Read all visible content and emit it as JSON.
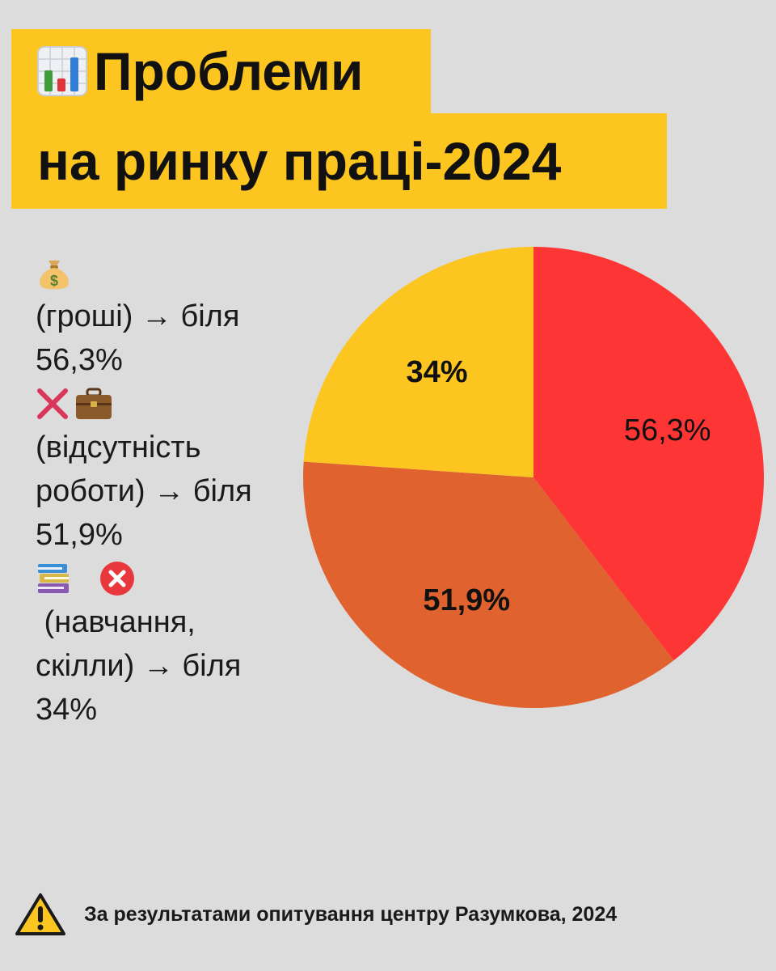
{
  "title": {
    "line1": "Проблеми",
    "line2": "на ринку праці-2024",
    "icon": "bar-chart-icon"
  },
  "legend": [
    {
      "icons": [
        "money-bag-icon"
      ],
      "label_lines": [
        "(гроші) → біля",
        "56,3%"
      ]
    },
    {
      "icons": [
        "cross-mark-icon",
        "briefcase-icon"
      ],
      "label_lines": [
        "(відсутність",
        "роботи) → біля",
        "51,9%"
      ]
    },
    {
      "icons": [
        "books-icon",
        "cross-circle-icon"
      ],
      "label_lines": [
        " (навчання,",
        "скілли) → біля",
        "34%"
      ]
    }
  ],
  "chart_data": {
    "type": "pie",
    "slices": [
      {
        "label": "56,3%",
        "value": 56.3,
        "color": "#fe3535"
      },
      {
        "label": "51,9%",
        "value": 51.9,
        "color": "#e0622e"
      },
      {
        "label": "34%",
        "value": 34,
        "color": "#fcc51f"
      }
    ],
    "start_angle_deg": 0,
    "direction": "clockwise"
  },
  "footer": {
    "icon": "warning-icon",
    "text": "За результатами опитування центру Разумкова, 2024"
  },
  "colors": {
    "background": "#dcdcdc",
    "accent": "#fcc51f"
  }
}
